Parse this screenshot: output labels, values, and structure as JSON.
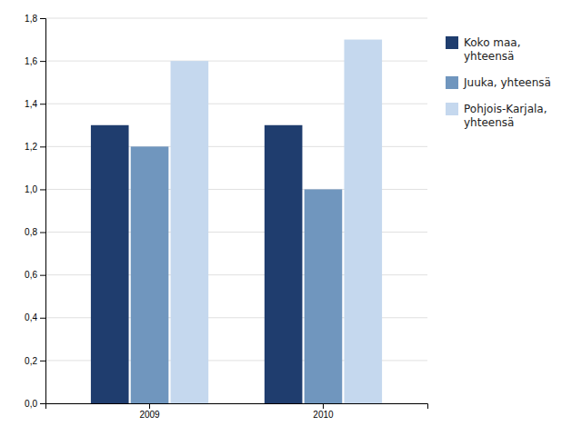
{
  "chart_data": {
    "type": "bar",
    "categories": [
      "2009",
      "2010"
    ],
    "series": [
      {
        "name": "Koko maa,\nyhteensä",
        "color": "#1f3d6e",
        "values": [
          1.3,
          1.3
        ]
      },
      {
        "name": "Juuka, yhteensä",
        "color": "#7096be",
        "values": [
          1.2,
          1.0
        ]
      },
      {
        "name": "Pohjois-Karjala,\nyhteensä",
        "color": "#c5d8ee",
        "values": [
          1.6,
          1.7
        ]
      }
    ],
    "ylim": [
      0.0,
      1.8
    ],
    "yticks": [
      {
        "value": 0.0,
        "label": "0,0"
      },
      {
        "value": 0.2,
        "label": "0,2"
      },
      {
        "value": 0.4,
        "label": "0,4"
      },
      {
        "value": 0.6,
        "label": "0,6"
      },
      {
        "value": 0.8,
        "label": "0,8"
      },
      {
        "value": 1.0,
        "label": "1,0"
      },
      {
        "value": 1.2,
        "label": "1,2"
      },
      {
        "value": 1.4,
        "label": "1,4"
      },
      {
        "value": 1.6,
        "label": "1,6"
      },
      {
        "value": 1.8,
        "label": "1,8"
      }
    ],
    "grid": true,
    "legend": "right"
  }
}
